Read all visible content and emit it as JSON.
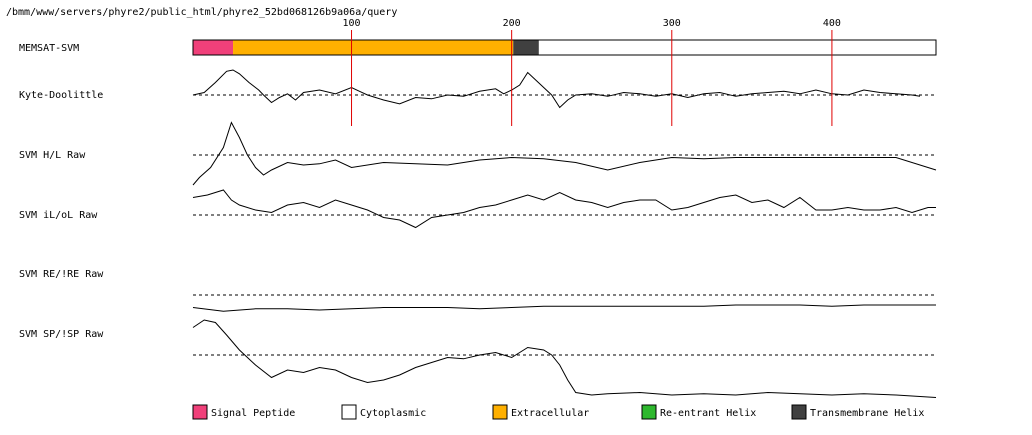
{
  "header": {
    "path": "/bmm/www/servers/phyre2/public_html/phyre2_52bd068126b9a06a/query"
  },
  "chart_data": {
    "type": "line",
    "title": "",
    "x_ticks": [
      100,
      200,
      300,
      400
    ],
    "x_range": [
      1,
      465
    ],
    "memsat_segments": [
      {
        "type": "Signal Peptide",
        "start": 1,
        "end": 26
      },
      {
        "type": "Extracellular",
        "start": 26,
        "end": 201
      },
      {
        "type": "Transmembrane Helix",
        "start": 201,
        "end": 217
      },
      {
        "type": "Cytoplasmic",
        "start": 217,
        "end": 465
      }
    ],
    "tracks": [
      {
        "name": "MEMSAT-SVM",
        "kind": "segments"
      },
      {
        "name": "Kyte-Doolittle",
        "kind": "line",
        "x": [
          1,
          8,
          15,
          22,
          26,
          30,
          36,
          42,
          45,
          50,
          55,
          60,
          65,
          70,
          80,
          90,
          100,
          105,
          110,
          115,
          120,
          130,
          140,
          150,
          160,
          170,
          180,
          190,
          195,
          200,
          205,
          210,
          215,
          220,
          225,
          230,
          235,
          240,
          250,
          260,
          270,
          280,
          290,
          300,
          310,
          320,
          330,
          340,
          350,
          360,
          370,
          380,
          390,
          400,
          410,
          420,
          430,
          440,
          450,
          455
        ],
        "values": [
          0,
          0.1,
          0.5,
          0.95,
          1.0,
          0.85,
          0.5,
          0.2,
          0,
          -0.3,
          -0.1,
          0.05,
          -0.2,
          0.1,
          0.2,
          0.05,
          0.3,
          0.15,
          0,
          -0.1,
          -0.2,
          -0.35,
          -0.1,
          -0.15,
          0,
          -0.05,
          0.15,
          0.25,
          0.05,
          0.2,
          0.4,
          0.9,
          0.6,
          0.3,
          0,
          -0.5,
          -0.2,
          0,
          0.05,
          -0.05,
          0.1,
          0.05,
          -0.05,
          0.05,
          -0.1,
          0.05,
          0.1,
          -0.05,
          0.05,
          0.1,
          0.15,
          0.05,
          0.2,
          0.05,
          0,
          0.2,
          0.1,
          0.05,
          0,
          -0.05
        ]
      },
      {
        "name": "SVM H/L Raw",
        "kind": "line",
        "x": [
          1,
          5,
          12,
          20,
          25,
          30,
          35,
          40,
          45,
          50,
          60,
          70,
          80,
          90,
          100,
          120,
          140,
          160,
          180,
          200,
          220,
          240,
          260,
          280,
          300,
          320,
          340,
          360,
          380,
          400,
          420,
          440,
          465
        ],
        "values": [
          -1.2,
          -0.9,
          -0.5,
          0.3,
          1.3,
          0.7,
          0,
          -0.5,
          -0.8,
          -0.6,
          -0.3,
          -0.4,
          -0.35,
          -0.2,
          -0.5,
          -0.3,
          -0.35,
          -0.4,
          -0.2,
          -0.1,
          -0.15,
          -0.3,
          -0.6,
          -0.3,
          -0.1,
          -0.15,
          -0.1,
          -0.1,
          -0.1,
          -0.1,
          -0.1,
          -0.1,
          -0.6
        ]
      },
      {
        "name": "SVM iL/oL Raw",
        "kind": "line",
        "x": [
          1,
          10,
          20,
          25,
          30,
          40,
          50,
          60,
          70,
          80,
          90,
          100,
          110,
          120,
          130,
          140,
          150,
          160,
          170,
          180,
          190,
          200,
          210,
          220,
          230,
          240,
          250,
          260,
          270,
          280,
          290,
          300,
          310,
          320,
          330,
          340,
          350,
          360,
          370,
          380,
          390,
          400,
          410,
          420,
          430,
          440,
          450,
          460,
          465
        ],
        "values": [
          0.7,
          0.8,
          1.0,
          0.6,
          0.4,
          0.2,
          0.1,
          0.4,
          0.5,
          0.3,
          0.6,
          0.4,
          0.2,
          -0.1,
          -0.2,
          -0.5,
          -0.1,
          0,
          0.1,
          0.3,
          0.4,
          0.6,
          0.8,
          0.6,
          0.9,
          0.6,
          0.5,
          0.3,
          0.5,
          0.6,
          0.6,
          0.2,
          0.3,
          0.5,
          0.7,
          0.8,
          0.5,
          0.6,
          0.3,
          0.7,
          0.2,
          0.2,
          0.3,
          0.2,
          0.2,
          0.3,
          0.1,
          0.3,
          0.3
        ]
      },
      {
        "name": "SVM RE/!RE Raw",
        "kind": "line",
        "x": [
          1,
          20,
          40,
          60,
          80,
          100,
          120,
          140,
          160,
          180,
          200,
          220,
          240,
          260,
          280,
          300,
          320,
          340,
          360,
          380,
          400,
          420,
          440,
          465
        ],
        "values": [
          -0.5,
          -0.65,
          -0.55,
          -0.55,
          -0.6,
          -0.55,
          -0.5,
          -0.5,
          -0.5,
          -0.55,
          -0.5,
          -0.45,
          -0.45,
          -0.45,
          -0.45,
          -0.45,
          -0.45,
          -0.4,
          -0.4,
          -0.4,
          -0.45,
          -0.4,
          -0.4,
          -0.4
        ]
      },
      {
        "name": "SVM SP/!SP Raw",
        "kind": "line",
        "x": [
          1,
          8,
          15,
          22,
          30,
          40,
          50,
          60,
          70,
          80,
          90,
          100,
          110,
          120,
          130,
          140,
          150,
          160,
          170,
          180,
          190,
          200,
          210,
          220,
          225,
          230,
          235,
          240,
          250,
          260,
          280,
          300,
          320,
          340,
          360,
          380,
          400,
          420,
          440,
          465
        ],
        "values": [
          1.1,
          1.4,
          1.3,
          0.8,
          0.2,
          -0.4,
          -0.9,
          -0.6,
          -0.7,
          -0.5,
          -0.6,
          -0.9,
          -1.1,
          -1.0,
          -0.8,
          -0.5,
          -0.3,
          -0.1,
          -0.15,
          0,
          0.1,
          -0.1,
          0.3,
          0.2,
          0,
          -0.4,
          -1.0,
          -1.5,
          -1.6,
          -1.55,
          -1.5,
          -1.6,
          -1.55,
          -1.6,
          -1.5,
          -1.55,
          -1.6,
          -1.55,
          -1.6,
          -1.7
        ]
      }
    ],
    "legend": [
      {
        "label": "Signal Peptide",
        "color": "#f0407a"
      },
      {
        "label": "Cytoplasmic",
        "color": "#ffffff"
      },
      {
        "label": "Extracellular",
        "color": "#ffb000"
      },
      {
        "label": "Re-entrant Helix",
        "color": "#2eb82e"
      },
      {
        "label": "Transmembrane Helix",
        "color": "#404040"
      }
    ]
  }
}
